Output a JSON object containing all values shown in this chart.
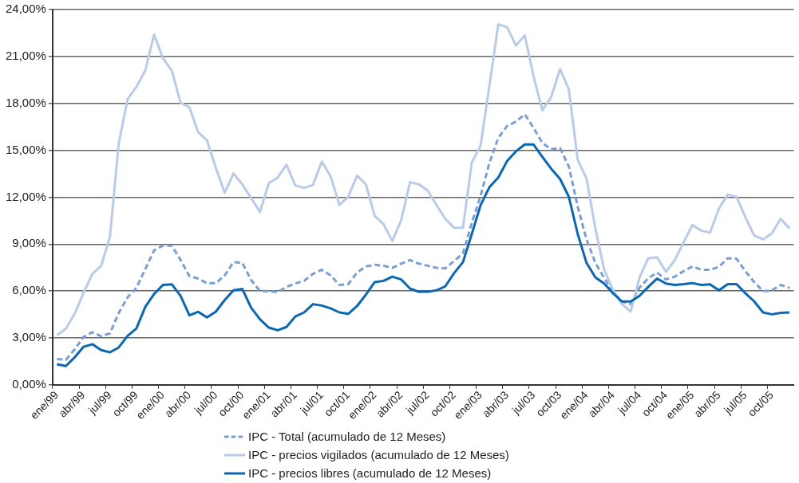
{
  "chart_data": {
    "type": "line",
    "categories": [
      "ene/99",
      null,
      null,
      "abr/99",
      null,
      null,
      "jul/99",
      null,
      null,
      "oct/99",
      null,
      null,
      "ene/00",
      null,
      null,
      "abr/00",
      null,
      null,
      "jul/00",
      null,
      null,
      "oct/00",
      null,
      null,
      "ene/01",
      null,
      null,
      "abr/01",
      null,
      null,
      "jul/01",
      null,
      null,
      "oct/01",
      null,
      null,
      "ene/02",
      null,
      null,
      "abr/02",
      null,
      null,
      "jul/02",
      null,
      null,
      "oct/02",
      null,
      null,
      "ene/03",
      null,
      null,
      "abr/03",
      null,
      null,
      "jul/03",
      null,
      null,
      "oct/03",
      null,
      null,
      "ene/04",
      null,
      null,
      "abr/04",
      null,
      null,
      "jul/04",
      null,
      null,
      "oct/04",
      null,
      null,
      "ene/05",
      null,
      null,
      "abr/05",
      null,
      null,
      "jul/05",
      null,
      null,
      "oct/05",
      null,
      null
    ],
    "series": [
      {
        "name": "IPC - Total (acumulado de 12 Meses)",
        "color": "#7b9fd4",
        "line_style": "dashed",
        "values": [
          1.65,
          1.6,
          2.27,
          3.06,
          3.36,
          3.11,
          3.29,
          4.6,
          5.6,
          6.2,
          7.4,
          8.6,
          8.9,
          8.9,
          8.0,
          6.95,
          6.8,
          6.5,
          6.5,
          7.0,
          7.85,
          7.8,
          6.7,
          6.0,
          6.0,
          5.92,
          6.27,
          6.48,
          6.65,
          7.1,
          7.36,
          7.0,
          6.39,
          6.44,
          7.18,
          7.57,
          7.68,
          7.62,
          7.48,
          7.75,
          7.98,
          7.75,
          7.62,
          7.48,
          7.45,
          7.92,
          8.42,
          10.35,
          12.1,
          14.2,
          15.8,
          16.55,
          16.83,
          17.3,
          16.43,
          15.46,
          15.07,
          15.14,
          13.96,
          11.4,
          9.3,
          7.8,
          6.83,
          5.95,
          5.33,
          5.16,
          6.21,
          6.83,
          7.18,
          6.74,
          6.92,
          7.27,
          7.57,
          7.36,
          7.36,
          7.54,
          8.1,
          8.06,
          7.27,
          6.57,
          5.99,
          6.04,
          6.39,
          6.2
        ]
      },
      {
        "name": "IPC - precios vigilados (acumulado de 12 Meses)",
        "color": "#b9cbe8",
        "line_style": "solid",
        "values": [
          3.18,
          3.59,
          4.55,
          5.87,
          7.1,
          7.6,
          9.48,
          15.45,
          18.27,
          19.06,
          20.1,
          22.4,
          20.9,
          20.1,
          18.05,
          17.75,
          16.15,
          15.63,
          13.87,
          12.29,
          13.52,
          12.82,
          11.94,
          11.06,
          12.9,
          13.25,
          14.08,
          12.76,
          12.59,
          12.78,
          14.28,
          13.34,
          11.5,
          12.03,
          13.38,
          12.82,
          10.8,
          10.27,
          9.21,
          10.53,
          12.96,
          12.82,
          12.43,
          11.5,
          10.62,
          10.04,
          10.04,
          14.22,
          15.31,
          19.15,
          23.05,
          22.87,
          21.7,
          22.35,
          19.73,
          17.56,
          18.41,
          20.2,
          18.88,
          14.4,
          13.2,
          10.0,
          7.37,
          6.05,
          5.17,
          4.69,
          6.87,
          8.1,
          8.16,
          7.23,
          7.98,
          9.12,
          10.22,
          9.86,
          9.74,
          11.27,
          12.17,
          12.03,
          10.71,
          9.56,
          9.3,
          9.69,
          10.62,
          10.0
        ]
      },
      {
        "name": "IPC - precios libres (acumulado de 12 Meses)",
        "color": "#0b67b2",
        "line_style": "solid",
        "values": [
          1.32,
          1.2,
          1.76,
          2.43,
          2.6,
          2.22,
          2.08,
          2.39,
          3.13,
          3.61,
          4.98,
          5.81,
          6.39,
          6.43,
          5.69,
          4.45,
          4.67,
          4.31,
          4.68,
          5.42,
          6.04,
          6.13,
          4.93,
          4.19,
          3.66,
          3.49,
          3.7,
          4.37,
          4.63,
          5.16,
          5.07,
          4.89,
          4.63,
          4.54,
          5.04,
          5.77,
          6.57,
          6.65,
          6.92,
          6.74,
          6.16,
          5.95,
          5.95,
          6.04,
          6.3,
          7.15,
          7.85,
          9.65,
          11.5,
          12.64,
          13.26,
          14.31,
          14.93,
          15.37,
          15.37,
          14.58,
          13.82,
          13.17,
          12.02,
          9.65,
          7.8,
          6.87,
          6.48,
          5.86,
          5.33,
          5.33,
          5.69,
          6.27,
          6.8,
          6.48,
          6.39,
          6.44,
          6.51,
          6.39,
          6.43,
          6.04,
          6.44,
          6.44,
          5.86,
          5.33,
          4.63,
          4.51,
          4.6,
          4.63
        ]
      }
    ],
    "ylim": [
      0,
      24
    ],
    "yticks": [
      {
        "value": 0,
        "label": "0,00%"
      },
      {
        "value": 3,
        "label": "3,00%"
      },
      {
        "value": 6,
        "label": "6,00%"
      },
      {
        "value": 9,
        "label": "9,00%"
      },
      {
        "value": 12,
        "label": "12,00%"
      },
      {
        "value": 15,
        "label": "15,00%"
      },
      {
        "value": 18,
        "label": "18,00%"
      },
      {
        "value": 21,
        "label": "21,00%"
      },
      {
        "value": 24,
        "label": "24,00%"
      }
    ],
    "grid": "y",
    "legend": "bottom",
    "marker": "none"
  }
}
